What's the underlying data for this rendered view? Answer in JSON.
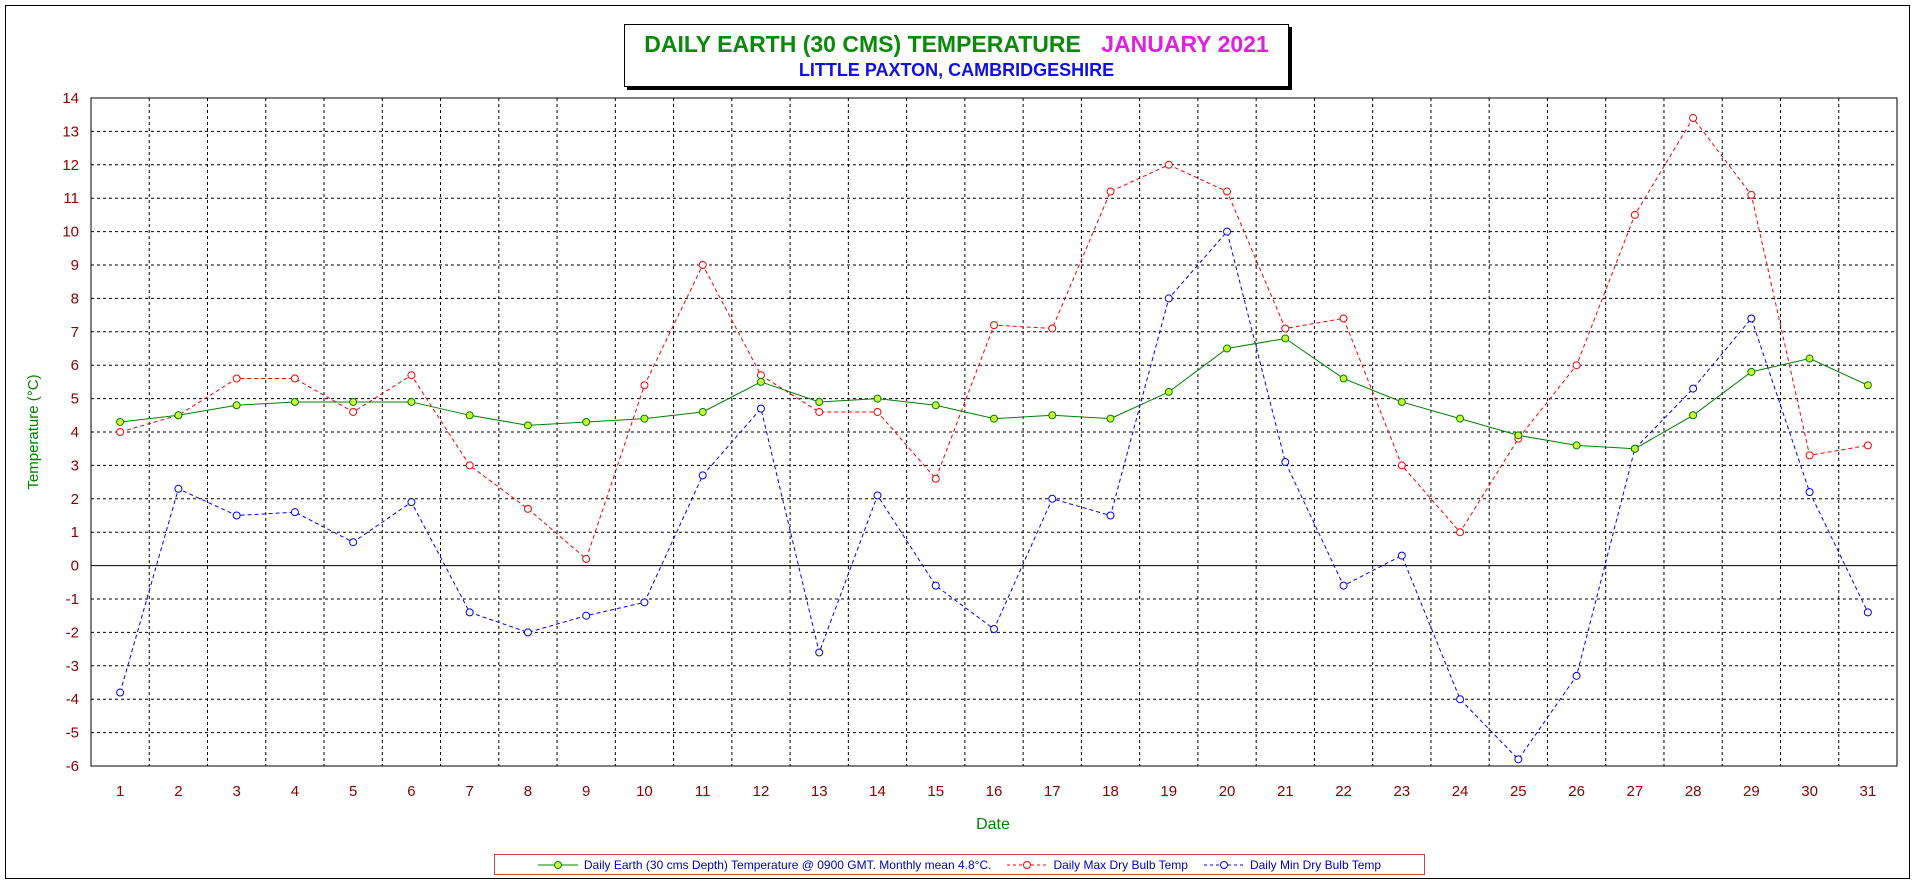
{
  "chart_data": {
    "type": "line",
    "title": "DAILY EARTH (30 CMS) TEMPERATURE",
    "title_month": "JANUARY 2021",
    "subtitle": "LITTLE PAXTON, CAMBRIDGESHIRE",
    "xlabel": "Date",
    "ylabel": "Temperature (°C)",
    "ylim": [
      -6,
      14
    ],
    "yticks": [
      14,
      13,
      12,
      11,
      10,
      9,
      8,
      7,
      6,
      5,
      4,
      3,
      2,
      1,
      0,
      -1,
      -2,
      -3,
      -4,
      -5,
      -6
    ],
    "x": [
      1,
      2,
      3,
      4,
      5,
      6,
      7,
      8,
      9,
      10,
      11,
      12,
      13,
      14,
      15,
      16,
      17,
      18,
      19,
      20,
      21,
      22,
      23,
      24,
      25,
      26,
      27,
      28,
      29,
      30,
      31
    ],
    "grid": true,
    "legend_position": "bottom",
    "series": [
      {
        "name": "Daily Earth (30 cms Depth) Temperature @ 0900 GMT. Monthly mean 4.8°C.",
        "color": "#008000",
        "marker_fill": "#ccff33",
        "style": "solid",
        "values": [
          4.3,
          4.5,
          4.8,
          4.9,
          4.9,
          4.9,
          4.5,
          4.2,
          4.3,
          4.4,
          4.6,
          5.5,
          4.9,
          5.0,
          4.8,
          4.4,
          4.5,
          4.4,
          5.2,
          6.5,
          6.8,
          5.6,
          4.9,
          4.4,
          3.9,
          3.6,
          3.5,
          4.5,
          5.8,
          6.2,
          5.4
        ]
      },
      {
        "name": "Daily Max Dry Bulb Temp",
        "color": "#ff0000",
        "marker_fill": "#ffffff",
        "style": "dashed",
        "values": [
          4.0,
          4.5,
          5.6,
          5.6,
          4.6,
          5.7,
          3.0,
          1.7,
          0.2,
          5.4,
          9.0,
          5.7,
          4.6,
          4.6,
          2.6,
          7.2,
          7.1,
          11.2,
          12.0,
          11.2,
          7.1,
          7.4,
          3.0,
          1.0,
          3.8,
          6.0,
          10.5,
          13.4,
          11.1,
          3.3,
          3.6
        ]
      },
      {
        "name": "Daily Min Dry Bulb Temp",
        "color": "#0000ff",
        "marker_fill": "#ffffff",
        "style": "dashed",
        "values": [
          -3.8,
          2.3,
          1.5,
          1.6,
          0.7,
          1.9,
          -1.4,
          -2.0,
          -1.5,
          -1.1,
          2.7,
          4.7,
          -2.6,
          2.1,
          -0.6,
          -1.9,
          2.0,
          1.5,
          8.0,
          10.0,
          3.1,
          -0.6,
          0.3,
          -4.0,
          -5.8,
          -3.3,
          3.5,
          5.3,
          7.4,
          2.2,
          -1.4
        ]
      }
    ]
  },
  "colors": {
    "axis_text": "#8b0000",
    "axis_title": "#008000",
    "grid": "#000000"
  }
}
